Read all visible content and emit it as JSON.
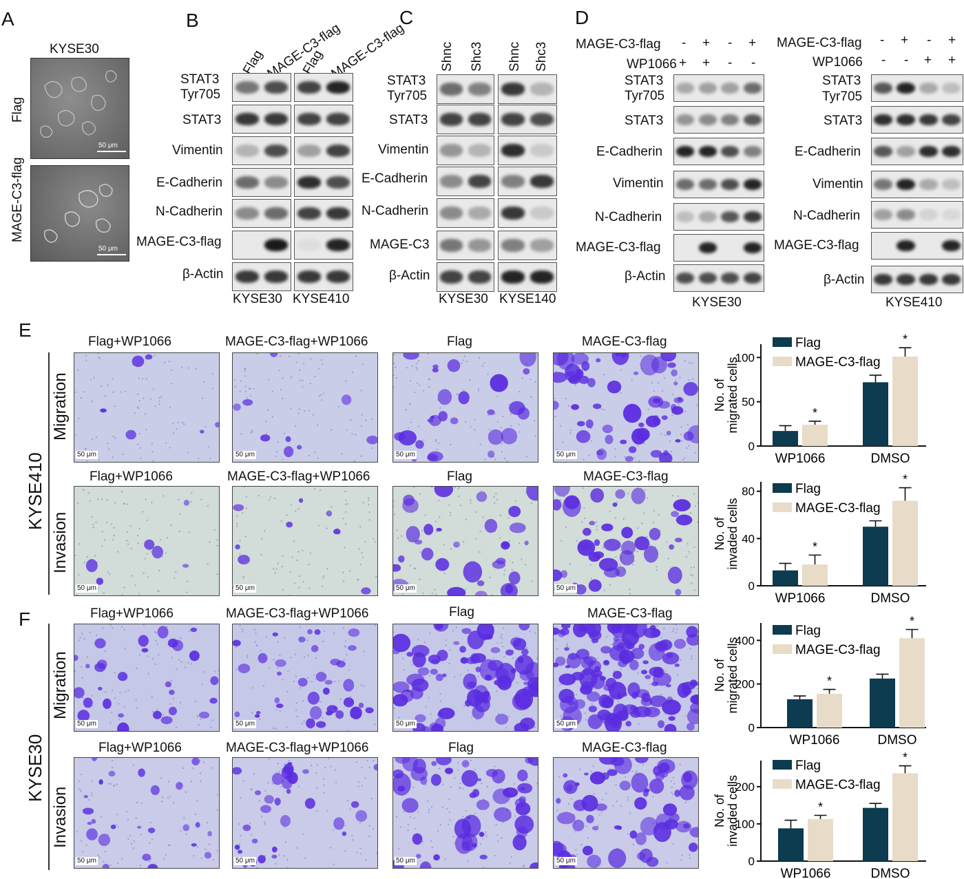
{
  "panel_letters": [
    "A",
    "B",
    "C",
    "D",
    "E",
    "F"
  ],
  "panelA": {
    "title": "KYSE30",
    "rows": [
      "Flag",
      "MAGE-C3-flag"
    ],
    "scale_bar": "50 μm"
  },
  "panelB": {
    "lanes": [
      "Flag",
      "MAGE-C3-flag",
      "Flag",
      "MAGE-C3-flag"
    ],
    "rows": [
      "STAT3 Tyr705",
      "STAT3",
      "Vimentin",
      "E-Cadherin",
      "N-Cadherin",
      "MAGE-C3-flag",
      "β-Actin"
    ],
    "cell_lines": [
      "KYSE30",
      "KYSE410"
    ]
  },
  "panelC": {
    "lanes": [
      "Shnc",
      "Shc3",
      "Shnc",
      "Shc3"
    ],
    "rows": [
      "STAT3 Tyr705",
      "STAT3",
      "Vimentin",
      "E-Cadherin",
      "N-Cadherin",
      "MAGE-C3",
      "β-Actin"
    ],
    "cell_lines": [
      "KYSE30",
      "KYSE140"
    ]
  },
  "panelD": {
    "left": {
      "cond1_label": "MAGE-C3-flag",
      "cond1": [
        "-",
        "+",
        "-",
        "+"
      ],
      "cond2_label": "WP1066",
      "cond2": [
        "+",
        "+",
        "-",
        "-"
      ],
      "rows": [
        "STAT3 Tyr705",
        "STAT3",
        "E-Cadherin",
        "Vimentin",
        "N-Cadherin",
        "MAGE-C3-flag",
        "β-Actin"
      ],
      "cell_line": "KYSE30"
    },
    "right": {
      "cond1_label": "MAGE-C3-flag",
      "cond1": [
        "-",
        "+",
        "-",
        "+"
      ],
      "cond2_label": "WP1066",
      "cond2": [
        "-",
        "-",
        "+",
        "+"
      ],
      "rows": [
        "STAT3 Tyr705",
        "STAT3",
        "E-Cadherin",
        "Vimentin",
        "N-Cadherin",
        "MAGE-C3-flag",
        "β-Actin"
      ],
      "cell_line": "KYSE410"
    }
  },
  "panelE": {
    "cell_line": "KYSE410",
    "rows": [
      "Migration",
      "Invasion"
    ],
    "columns": [
      "Flag+WP1066",
      "MAGE-C3-flag+WP1066",
      "Flag",
      "MAGE-C3-flag"
    ],
    "scale_bar": "50 μm"
  },
  "panelF": {
    "cell_line": "KYSE30",
    "rows": [
      "Migration",
      "Invasion"
    ],
    "columns": [
      "Flag+WP1066",
      "MAGE-C3-flag+WP1066",
      "Flag",
      "MAGE-C3-flag"
    ],
    "scale_bar": "50 μm"
  },
  "colors": {
    "flag": "#0d3b4f",
    "mage": "#e8dcc8",
    "stain": "#5a2ce0",
    "blot_bg": "#e9e9e9"
  },
  "chart_data": [
    {
      "type": "bar",
      "panel": "E",
      "ylabel": "No. of migrated cells",
      "categories": [
        "WP1066",
        "DMSO"
      ],
      "ylim": [
        0,
        115
      ],
      "yticks": [
        0,
        50,
        100
      ],
      "series": [
        {
          "name": "Flag",
          "values": [
            17,
            72
          ],
          "errors": [
            6,
            8
          ]
        },
        {
          "name": "MAGE-C3-flag",
          "values": [
            24,
            101
          ],
          "errors": [
            4,
            10
          ]
        }
      ],
      "annotations": [
        "*",
        "*"
      ]
    },
    {
      "type": "bar",
      "panel": "E",
      "ylabel": "No. of invaded cells",
      "categories": [
        "WP1066",
        "DMSO"
      ],
      "ylim": [
        0,
        88
      ],
      "yticks": [
        0,
        40,
        80
      ],
      "series": [
        {
          "name": "Flag",
          "values": [
            13,
            50
          ],
          "errors": [
            6,
            5
          ]
        },
        {
          "name": "MAGE-C3-flag",
          "values": [
            18,
            72
          ],
          "errors": [
            8,
            11
          ]
        }
      ],
      "annotations": [
        "*",
        "*"
      ]
    },
    {
      "type": "bar",
      "panel": "F",
      "ylabel": "No. of migrated cells",
      "categories": [
        "WP1066",
        "DMSO"
      ],
      "ylim": [
        0,
        480
      ],
      "yticks": [
        0,
        200,
        400
      ],
      "series": [
        {
          "name": "Flag",
          "values": [
            130,
            225
          ],
          "errors": [
            15,
            20
          ]
        },
        {
          "name": "MAGE-C3-flag",
          "values": [
            155,
            410
          ],
          "errors": [
            20,
            40
          ]
        }
      ],
      "annotations": [
        "*",
        "*"
      ]
    },
    {
      "type": "bar",
      "panel": "F",
      "ylabel": "No. of invaded cells",
      "categories": [
        "WP1066",
        "DMSO"
      ],
      "ylim": [
        0,
        270
      ],
      "yticks": [
        0,
        100,
        200
      ],
      "series": [
        {
          "name": "Flag",
          "values": [
            88,
            143
          ],
          "errors": [
            22,
            12
          ]
        },
        {
          "name": "MAGE-C3-flag",
          "values": [
            113,
            236
          ],
          "errors": [
            10,
            20
          ]
        }
      ],
      "annotations": [
        "*",
        "*"
      ]
    }
  ]
}
